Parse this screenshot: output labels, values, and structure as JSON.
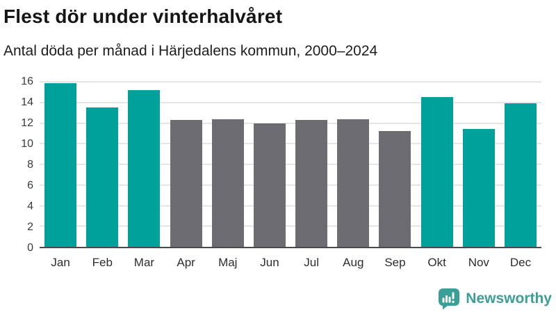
{
  "header": {
    "title": "Flest dör under vinterhalvåret",
    "subtitle": "Antal döda per månad i Härjedalens kommun, 2000–2024"
  },
  "chart_data": {
    "type": "bar",
    "categories": [
      "Jan",
      "Feb",
      "Mar",
      "Apr",
      "Maj",
      "Jun",
      "Jul",
      "Aug",
      "Sep",
      "Okt",
      "Nov",
      "Dec"
    ],
    "values": [
      15.9,
      13.5,
      15.2,
      12.3,
      12.4,
      12.0,
      12.3,
      12.4,
      11.2,
      14.5,
      11.4,
      13.9
    ],
    "bar_colors": [
      "#00A19A",
      "#00A19A",
      "#00A19A",
      "#6C6C72",
      "#6C6C72",
      "#6C6C72",
      "#6C6C72",
      "#6C6C72",
      "#6C6C72",
      "#00A19A",
      "#00A19A",
      "#00A19A"
    ],
    "title": "Flest dör under vinterhalvåret",
    "subtitle": "Antal döda per månad i Härjedalens kommun, 2000–2024",
    "xlabel": "",
    "ylabel": "",
    "ylim": [
      0,
      16
    ],
    "yticks": [
      0,
      2,
      4,
      6,
      8,
      10,
      12,
      14,
      16
    ],
    "grid": true,
    "legend": false
  },
  "colors": {
    "winter_bar": "#00A19A",
    "summer_bar": "#6C6C72",
    "gridline": "#E5E5E5",
    "axis_line": "#4A4A4A",
    "title_text": "#161616",
    "brand_teal": "#3B9E97"
  },
  "branding": {
    "logo_text": "Newsworthy",
    "logo_icon": "bar-chart-speech-bubble-icon"
  }
}
